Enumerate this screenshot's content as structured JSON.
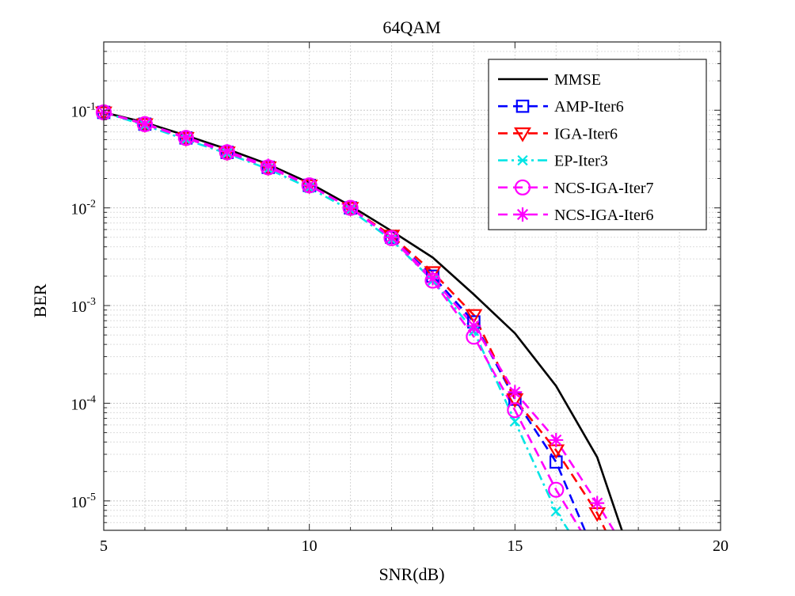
{
  "chart_data": {
    "type": "line",
    "title": "64QAM",
    "xlabel": "SNR(dB)",
    "ylabel": "BER",
    "xlim": [
      5,
      20
    ],
    "ylim": [
      5e-06,
      0.5
    ],
    "yscale": "log",
    "grid": true,
    "minor_grid": true,
    "legend_position": "top-right",
    "x_ticks": [
      {
        "value": 5,
        "label": "5"
      },
      {
        "value": 10,
        "label": "10"
      },
      {
        "value": 15,
        "label": "15"
      },
      {
        "value": 20,
        "label": "20"
      }
    ],
    "y_ticks": [
      {
        "value": 1e-05,
        "base": "10",
        "exp": "-5"
      },
      {
        "value": 0.0001,
        "base": "10",
        "exp": "-4"
      },
      {
        "value": 0.001,
        "base": "10",
        "exp": "-3"
      },
      {
        "value": 0.01,
        "base": "10",
        "exp": "-2"
      },
      {
        "value": 0.1,
        "base": "10",
        "exp": "-1"
      }
    ],
    "series": [
      {
        "name": "MMSE",
        "color": "#000000",
        "dash": "solid",
        "marker": "none",
        "x": [
          5,
          6,
          7,
          8,
          9,
          10,
          11,
          12,
          13,
          14,
          15,
          16,
          17,
          17.6
        ],
        "y": [
          0.095,
          0.075,
          0.055,
          0.04,
          0.028,
          0.018,
          0.0105,
          0.0058,
          0.0031,
          0.0013,
          0.00052,
          0.00015,
          2.8e-05,
          5e-06
        ]
      },
      {
        "name": "AMP-Iter6",
        "color": "#0000ff",
        "dash": "dash",
        "marker": "square",
        "x": [
          5,
          6,
          7,
          8,
          9,
          10,
          11,
          12,
          13,
          14,
          15,
          16,
          16.7
        ],
        "y": [
          0.095,
          0.072,
          0.052,
          0.037,
          0.026,
          0.017,
          0.01,
          0.005,
          0.002,
          0.00068,
          0.00011,
          2.5e-05,
          5e-06
        ]
      },
      {
        "name": "IGA-Iter6",
        "color": "#ff0000",
        "dash": "dash",
        "marker": "triangle-down",
        "x": [
          5,
          6,
          7,
          8,
          9,
          10,
          11,
          12,
          13,
          14,
          15,
          16,
          17,
          17.2
        ],
        "y": [
          0.095,
          0.072,
          0.052,
          0.037,
          0.026,
          0.017,
          0.01,
          0.0052,
          0.0022,
          0.0008,
          0.00011,
          3.3e-05,
          7.5e-06,
          5e-06
        ]
      },
      {
        "name": "EP-Iter3",
        "color": "#00e5e5",
        "dash": "dashdot",
        "marker": "x",
        "x": [
          5,
          6,
          7,
          8,
          9,
          10,
          11,
          12,
          13,
          14,
          15,
          16,
          16.3
        ],
        "y": [
          0.095,
          0.07,
          0.05,
          0.036,
          0.025,
          0.016,
          0.0095,
          0.0047,
          0.0018,
          0.00055,
          6.5e-05,
          7.8e-06,
          5e-06
        ]
      },
      {
        "name": "NCS-IGA-Iter7",
        "color": "#ff00ff",
        "dash": "dash",
        "marker": "circle",
        "x": [
          5,
          6,
          7,
          8,
          9,
          10,
          11,
          12,
          13,
          14,
          15,
          16,
          16.6
        ],
        "y": [
          0.095,
          0.072,
          0.052,
          0.037,
          0.026,
          0.017,
          0.01,
          0.0049,
          0.0018,
          0.00048,
          8.5e-05,
          1.3e-05,
          5e-06
        ]
      },
      {
        "name": "NCS-IGA-Iter6",
        "color": "#ff00ff",
        "dash": "dash",
        "marker": "asterisk",
        "x": [
          5,
          6,
          7,
          8,
          9,
          10,
          11,
          12,
          13,
          14,
          15,
          16,
          17,
          17.4
        ],
        "y": [
          0.095,
          0.073,
          0.053,
          0.038,
          0.027,
          0.017,
          0.01,
          0.005,
          0.0019,
          0.00062,
          0.00013,
          4.2e-05,
          9.5e-06,
          5e-06
        ]
      }
    ]
  }
}
